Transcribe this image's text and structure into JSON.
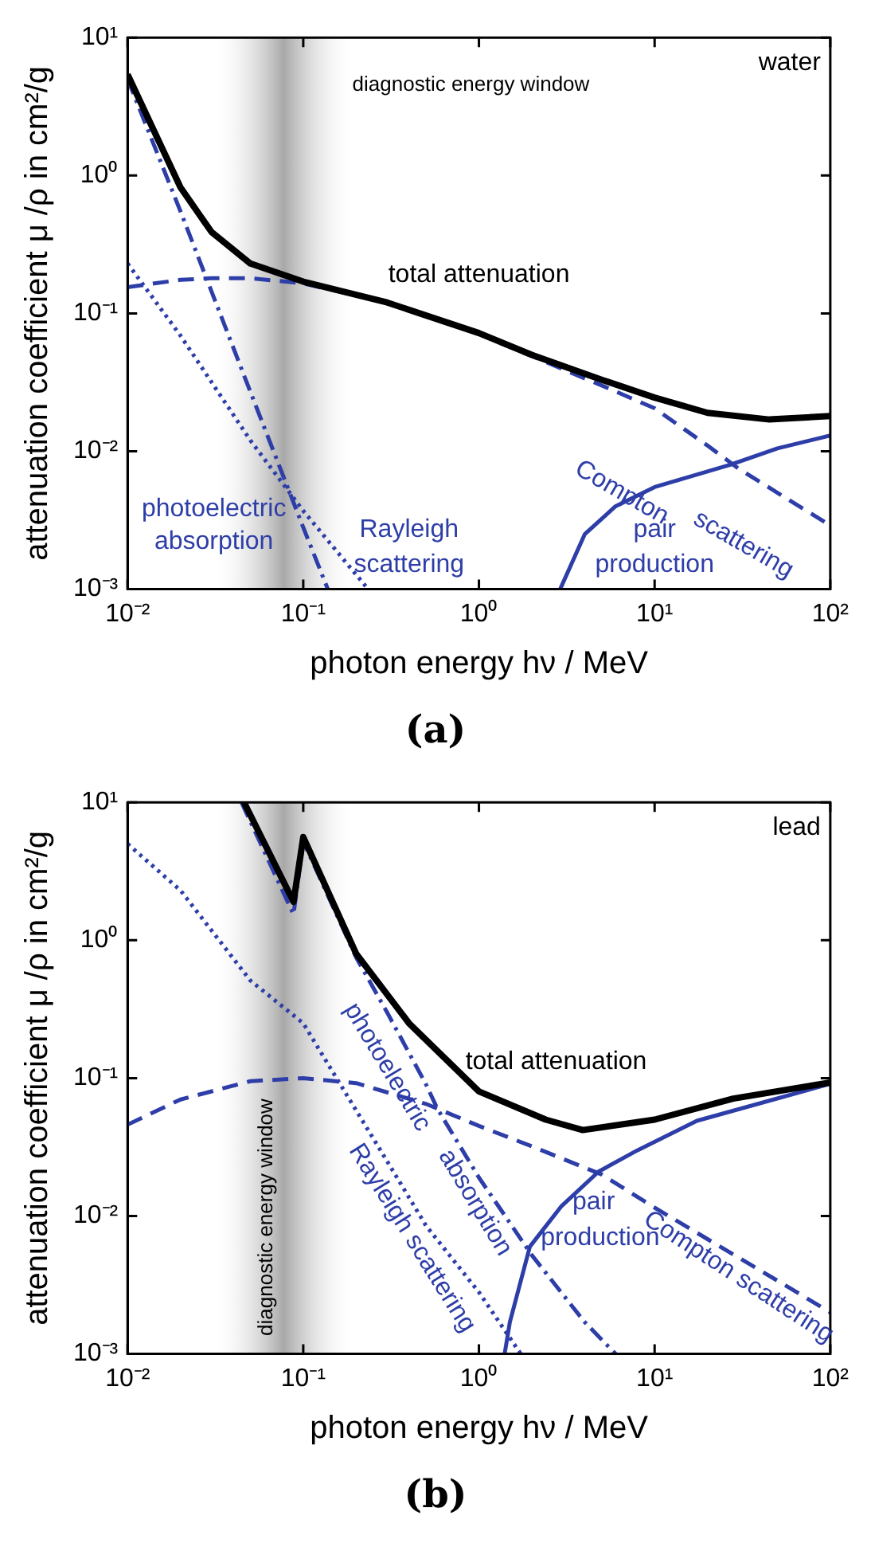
{
  "chart_data": [
    {
      "type": "line",
      "xlabel": "photon energy hν / MeV",
      "ylabel": "attenuation coefficient μ /ρ in cm²/g",
      "log": "xy",
      "legend": false,
      "grid": false,
      "xlim": [
        0.01,
        100
      ],
      "ylim": [
        0.001,
        10
      ],
      "xticks": [
        {
          "value": 0.01,
          "label": "10⁻²"
        },
        {
          "value": 0.1,
          "label": "10⁻¹"
        },
        {
          "value": 1,
          "label": "10⁰"
        },
        {
          "value": 10,
          "label": "10¹"
        },
        {
          "value": 100,
          "label": "10²"
        }
      ],
      "yticks": [
        {
          "value": 0.001,
          "label": "10⁻³"
        },
        {
          "value": 0.01,
          "label": "10⁻²"
        },
        {
          "value": 0.1,
          "label": "10⁻¹"
        },
        {
          "value": 1,
          "label": "10⁰"
        },
        {
          "value": 10,
          "label": "10¹"
        }
      ],
      "bands": [
        {
          "axis": "x",
          "from": 0.03,
          "to": 0.2,
          "label": "diagnostic energy window",
          "color": "#a8a8a8"
        }
      ],
      "annotations": [
        "water",
        "(a)"
      ],
      "series": [
        {
          "name": "total attenuation",
          "color": "#000000",
          "line_style": "solid",
          "x": [
            0.01,
            0.02,
            0.03,
            0.05,
            0.1,
            0.3,
            1,
            2,
            5,
            10,
            20,
            45,
            100
          ],
          "values": [
            5.4,
            0.82,
            0.39,
            0.23,
            0.17,
            0.12,
            0.072,
            0.05,
            0.033,
            0.0245,
            0.019,
            0.017,
            0.018
          ]
        },
        {
          "name": "photoelectric absorption",
          "color": "#2e3ea8",
          "line_style": "dashdot",
          "x": [
            0.01,
            0.02,
            0.05,
            0.1,
            0.138
          ],
          "values": [
            5.0,
            0.55,
            0.027,
            0.0028,
            0.001
          ]
        },
        {
          "name": "Rayleigh scattering",
          "color": "#2e3ea8",
          "line_style": "dotted",
          "x": [
            0.01,
            0.02,
            0.05,
            0.1,
            0.234
          ],
          "values": [
            0.23,
            0.069,
            0.012,
            0.0037,
            0.001
          ]
        },
        {
          "name": "Compton scattering",
          "color": "#2e3ea8",
          "line_style": "dashed",
          "x": [
            0.01,
            0.02,
            0.03,
            0.05,
            0.1,
            0.3,
            1,
            2,
            5,
            10,
            20,
            30,
            50,
            100
          ],
          "values": [
            0.155,
            0.175,
            0.18,
            0.18,
            0.165,
            0.12,
            0.0707,
            0.049,
            0.03,
            0.0205,
            0.011,
            0.0075,
            0.005,
            0.0029
          ]
        },
        {
          "name": "pair production",
          "color": "#2e3ea8",
          "line_style": "solid",
          "x": [
            2.9,
            4,
            6,
            10,
            27,
            50,
            100
          ],
          "values": [
            0.001,
            0.0025,
            0.004,
            0.0055,
            0.008,
            0.0105,
            0.013
          ]
        }
      ]
    },
    {
      "type": "line",
      "xlabel": "photon energy hν / MeV",
      "ylabel": "attenuation coefficient μ /ρ in cm²/g",
      "log": "xy",
      "legend": false,
      "grid": false,
      "xlim": [
        0.01,
        100
      ],
      "ylim": [
        0.001,
        10
      ],
      "xticks": [
        {
          "value": 0.01,
          "label": "10⁻²"
        },
        {
          "value": 0.1,
          "label": "10⁻¹"
        },
        {
          "value": 1,
          "label": "10⁰"
        },
        {
          "value": 10,
          "label": "10¹"
        },
        {
          "value": 100,
          "label": "10²"
        }
      ],
      "yticks": [
        {
          "value": 0.001,
          "label": "10⁻³"
        },
        {
          "value": 0.01,
          "label": "10⁻²"
        },
        {
          "value": 0.1,
          "label": "10⁻¹"
        },
        {
          "value": 1,
          "label": "10⁰"
        },
        {
          "value": 10,
          "label": "10¹"
        }
      ],
      "bands": [
        {
          "axis": "x",
          "from": 0.03,
          "to": 0.2,
          "label": "diagnostic energy window",
          "color": "#a8a8a8"
        }
      ],
      "annotations": [
        "lead",
        "(b)"
      ],
      "series": [
        {
          "name": "total attenuation",
          "color": "#000000",
          "line_style": "solid",
          "x": [
            0.046,
            0.088,
            0.1,
            0.2,
            0.4,
            1,
            2.4,
            3.9,
            10,
            28,
            100
          ],
          "values": [
            10,
            1.9,
            5.6,
            0.8,
            0.25,
            0.08,
            0.05,
            0.042,
            0.05,
            0.071,
            0.093
          ]
        },
        {
          "name": "photoelectric absorption",
          "color": "#2e3ea8",
          "line_style": "dashdot",
          "x": [
            0.0445,
            0.088,
            0.1,
            0.2,
            0.3,
            0.5,
            0.58,
            1,
            2,
            4,
            6
          ],
          "values": [
            10,
            1.54,
            5.2,
            0.75,
            0.3,
            0.09,
            0.06,
            0.019,
            0.0052,
            0.0017,
            0.001
          ]
        },
        {
          "name": "Rayleigh scattering",
          "color": "#2e3ea8",
          "line_style": "dotted",
          "x": [
            0.01,
            0.02,
            0.05,
            0.1,
            0.16,
            0.3,
            0.5,
            1,
            1.73
          ],
          "values": [
            5.0,
            2.3,
            0.51,
            0.25,
            0.093,
            0.025,
            0.0085,
            0.0028,
            0.001
          ]
        },
        {
          "name": "Compton scattering",
          "color": "#2e3ea8",
          "line_style": "dashed",
          "x": [
            0.01,
            0.02,
            0.05,
            0.1,
            0.2,
            0.5,
            1,
            2,
            5,
            10,
            20,
            50,
            100
          ],
          "values": [
            0.046,
            0.07,
            0.095,
            0.1,
            0.092,
            0.065,
            0.045,
            0.032,
            0.02,
            0.0115,
            0.0068,
            0.0034,
            0.002
          ]
        },
        {
          "name": "pair production",
          "color": "#2e3ea8",
          "line_style": "solid",
          "x": [
            1.4,
            1.5,
            1.95,
            2.95,
            4.8,
            8,
            17.4,
            100
          ],
          "values": [
            0.001,
            0.0017,
            0.006,
            0.0118,
            0.021,
            0.03,
            0.049,
            0.091
          ]
        }
      ]
    }
  ]
}
